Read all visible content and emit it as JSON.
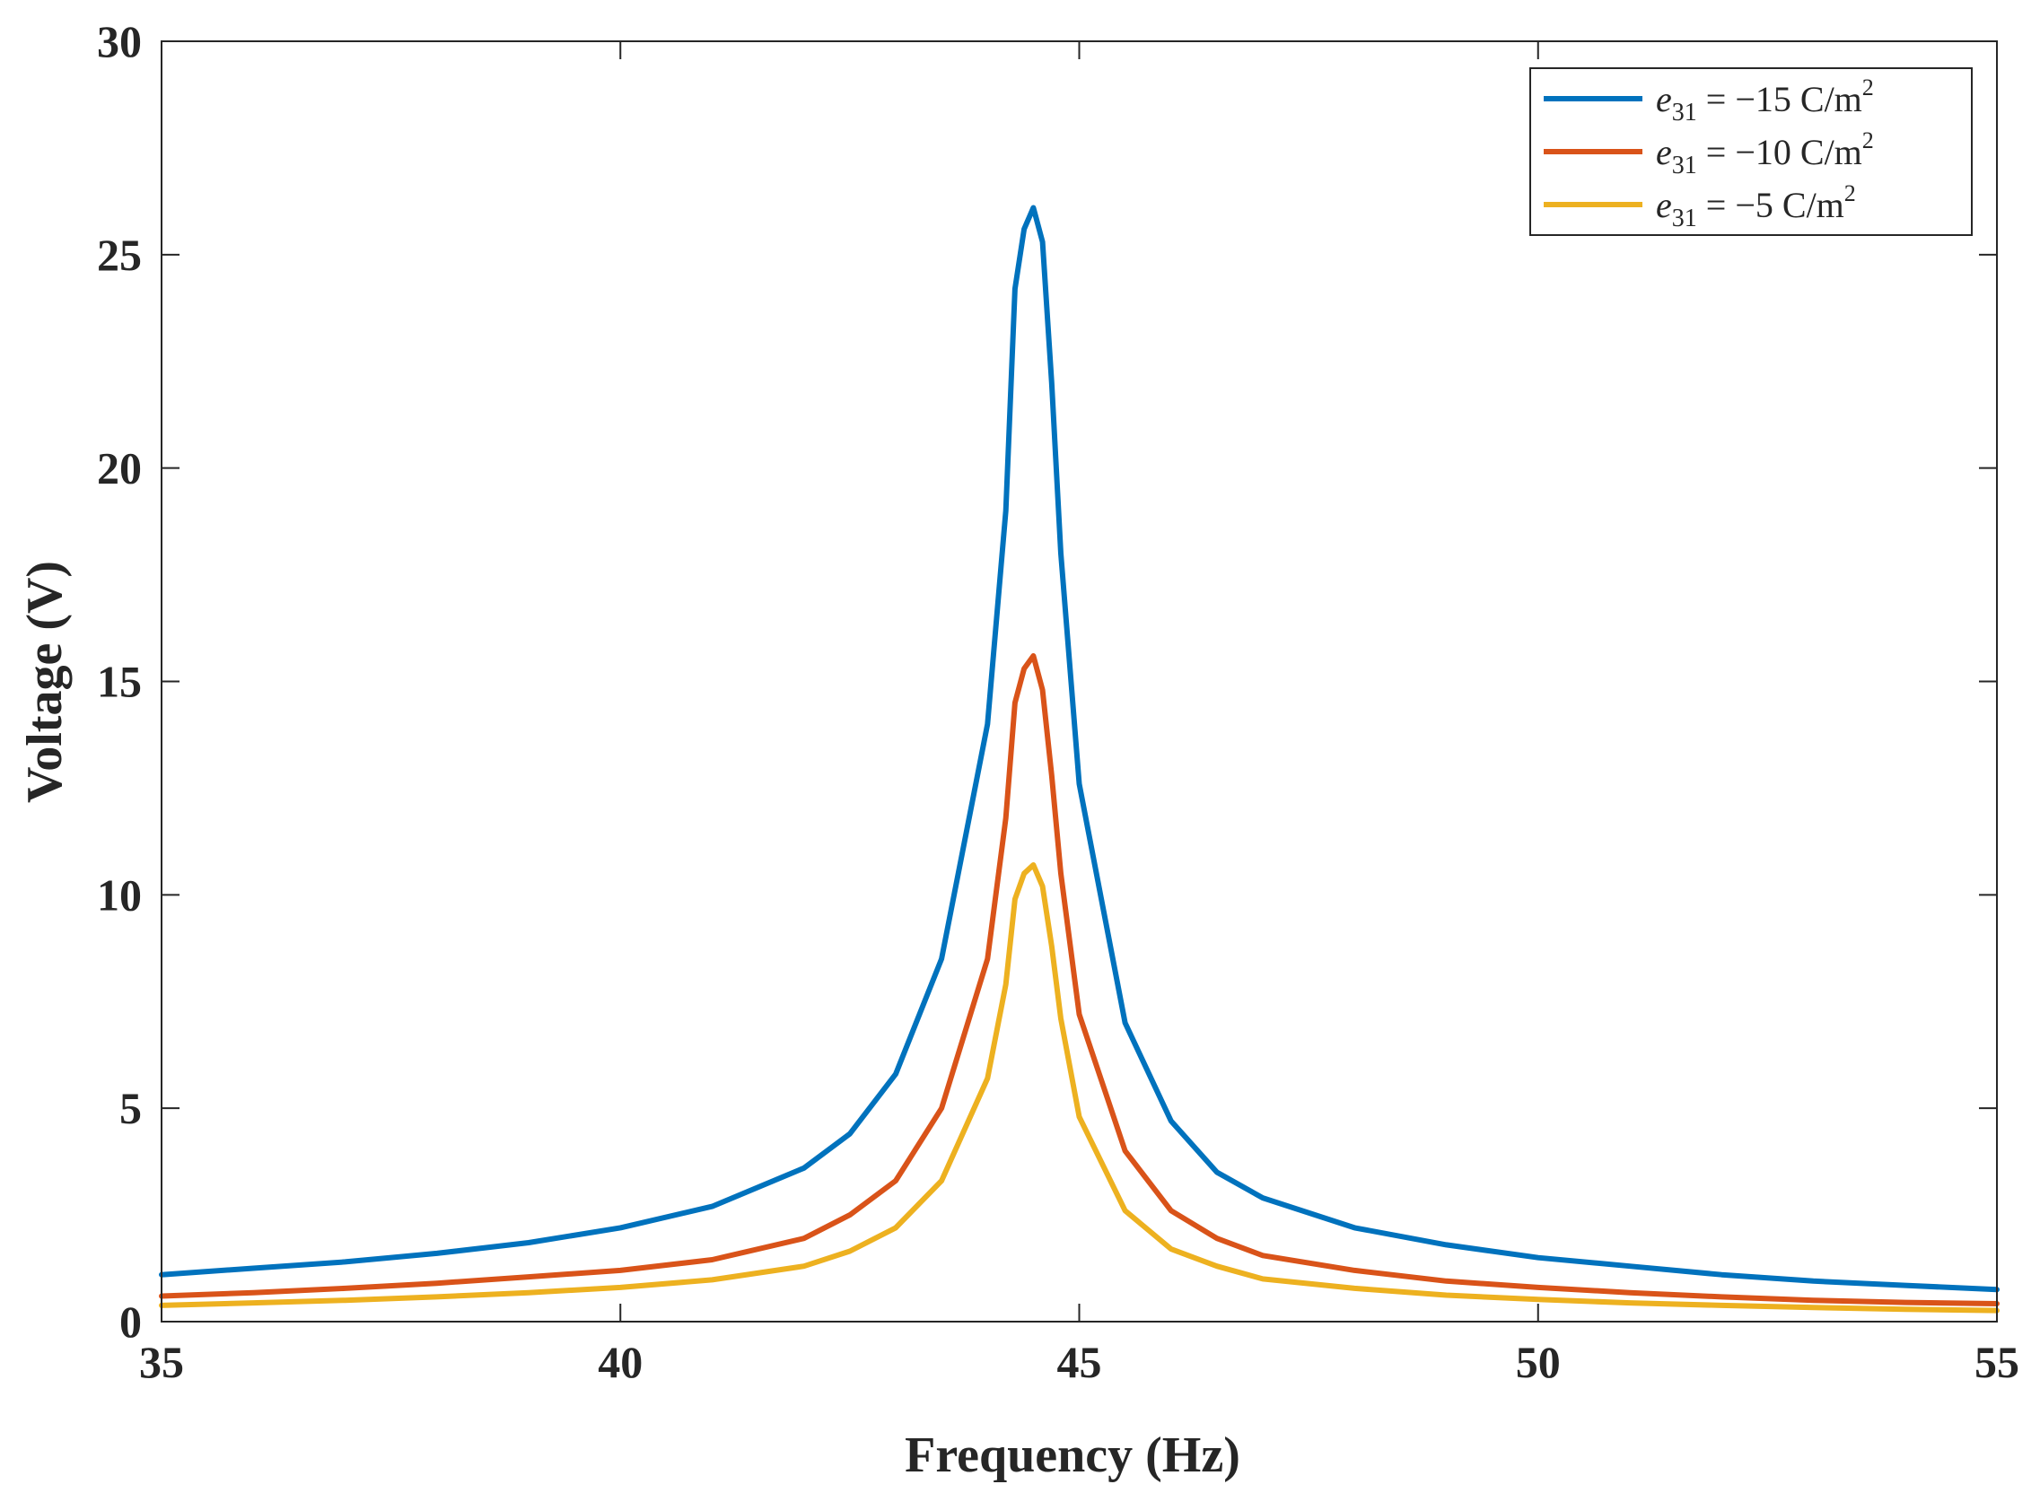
{
  "chart_data": {
    "type": "line",
    "title": "",
    "xlabel": "Frequency (Hz)",
    "ylabel": "Voltage (V)",
    "xlim": [
      35,
      55
    ],
    "ylim": [
      0,
      30
    ],
    "xticks": [
      35,
      40,
      45,
      50,
      55
    ],
    "yticks": [
      0,
      5,
      10,
      15,
      20,
      25,
      30
    ],
    "xtick_labels": [
      "35",
      "40",
      "45",
      "50",
      "55"
    ],
    "ytick_labels": [
      "0",
      "5",
      "10",
      "15",
      "20",
      "25",
      "30"
    ],
    "grid": false,
    "legend_position": "top-right",
    "x": [
      35,
      36,
      37,
      38,
      39,
      40,
      41,
      42,
      42.5,
      43,
      43.5,
      44,
      44.2,
      44.3,
      44.4,
      44.5,
      44.6,
      44.7,
      44.8,
      45,
      45.5,
      46,
      46.5,
      47,
      48,
      49,
      50,
      51,
      52,
      53,
      54,
      55
    ],
    "series": [
      {
        "name": "e31 = −15 C/m²",
        "legend_var": "e",
        "legend_sub": "31",
        "legend_rest": " = −15 C/m",
        "legend_sup": "2",
        "color": "#0072BD",
        "values": [
          1.1,
          1.25,
          1.4,
          1.6,
          1.85,
          2.2,
          2.7,
          3.6,
          4.4,
          5.8,
          8.5,
          14.0,
          19.0,
          24.2,
          25.6,
          26.1,
          25.3,
          22.0,
          18.0,
          12.6,
          7.0,
          4.7,
          3.5,
          2.9,
          2.2,
          1.8,
          1.5,
          1.3,
          1.1,
          0.95,
          0.85,
          0.75
        ]
      },
      {
        "name": "e31 = −10 C/m²",
        "legend_var": "e",
        "legend_sub": "31",
        "legend_rest": " = −10 C/m",
        "legend_sup": "2",
        "color": "#D95319",
        "values": [
          0.6,
          0.68,
          0.78,
          0.9,
          1.05,
          1.2,
          1.45,
          1.95,
          2.5,
          3.3,
          5.0,
          8.5,
          11.8,
          14.5,
          15.3,
          15.6,
          14.8,
          12.8,
          10.5,
          7.2,
          4.0,
          2.6,
          1.95,
          1.55,
          1.2,
          0.95,
          0.8,
          0.68,
          0.58,
          0.5,
          0.45,
          0.42
        ]
      },
      {
        "name": "e31 = −5 C/m²",
        "legend_var": "e",
        "legend_sub": "31",
        "legend_rest": " = −5 C/m",
        "legend_sup": "2",
        "color": "#EDB120",
        "values": [
          0.38,
          0.44,
          0.5,
          0.58,
          0.68,
          0.8,
          0.98,
          1.3,
          1.65,
          2.2,
          3.3,
          5.7,
          7.9,
          9.9,
          10.5,
          10.7,
          10.2,
          8.8,
          7.1,
          4.8,
          2.6,
          1.7,
          1.3,
          1.0,
          0.78,
          0.62,
          0.52,
          0.44,
          0.38,
          0.33,
          0.29,
          0.26
        ]
      }
    ]
  }
}
